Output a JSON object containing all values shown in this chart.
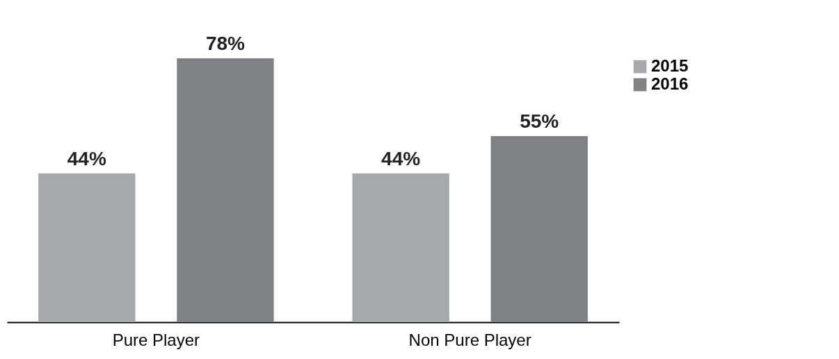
{
  "chart_data": {
    "type": "bar",
    "categories": [
      "Pure Player",
      "Non Pure Player"
    ],
    "series": [
      {
        "name": "2015",
        "color": "#a7a8ab",
        "values": [
          44,
          44
        ],
        "value_labels": [
          "44%",
          "44%"
        ]
      },
      {
        "name": "2016",
        "color": "#808184",
        "values": [
          78,
          55
        ],
        "value_labels": [
          "78%",
          "55%"
        ]
      }
    ],
    "legend": "right",
    "grid": false,
    "tick_labels": "x"
  }
}
